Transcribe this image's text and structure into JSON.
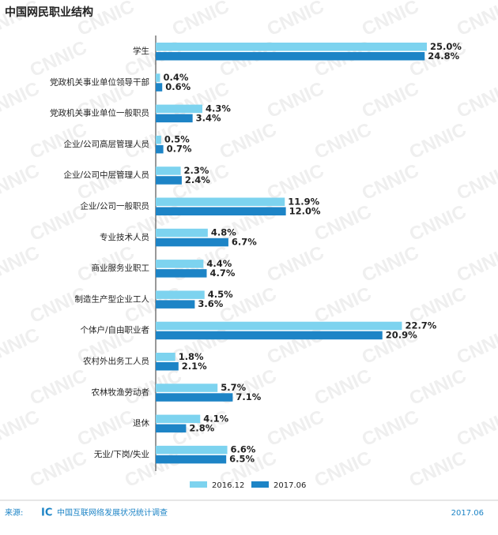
{
  "chart_data": {
    "type": "bar",
    "orientation": "horizontal",
    "title": "中国网民职业结构",
    "categories": [
      "学生",
      "党政机关事业单位领导干部",
      "党政机关事业单位一般职员",
      "企业/公司高层管理人员",
      "企业/公司中层管理人员",
      "企业/公司一般职员",
      "专业技术人员",
      "商业服务业职工",
      "制造生产型企业工人",
      "个体户/自由职业者",
      "农村外出务工人员",
      "农林牧渔劳动者",
      "退休",
      "无业/下岗/失业"
    ],
    "series": [
      {
        "name": "2016.12",
        "color": "#7dd3ef",
        "values": [
          25.0,
          0.4,
          4.3,
          0.5,
          2.3,
          11.9,
          4.8,
          4.4,
          4.5,
          22.7,
          1.8,
          5.7,
          4.1,
          6.6
        ],
        "value_labels": [
          "25.0%",
          "0.4%",
          "4.3%",
          "0.5%",
          "2.3%",
          "11.9%",
          "4.8%",
          "4.4%",
          "4.5%",
          "22.7%",
          "1.8%",
          "5.7%",
          "4.1%",
          "6.6%"
        ]
      },
      {
        "name": "2017.06",
        "color": "#1d84c6",
        "values": [
          24.8,
          0.6,
          3.4,
          0.7,
          2.4,
          12.0,
          6.7,
          4.7,
          3.6,
          20.9,
          2.1,
          7.1,
          2.8,
          6.5
        ],
        "value_labels": [
          "24.8%",
          "0.6%",
          "3.4%",
          "0.7%",
          "2.4%",
          "12.0%",
          "6.7%",
          "4.7%",
          "3.6%",
          "20.9%",
          "2.1%",
          "7.1%",
          "2.8%",
          "6.5%"
        ]
      }
    ],
    "source_label": "来源:",
    "logo": "IC",
    "source": "中国互联网络发展状况统计调查",
    "date": "2017.06",
    "watermark": "CNNIC"
  }
}
